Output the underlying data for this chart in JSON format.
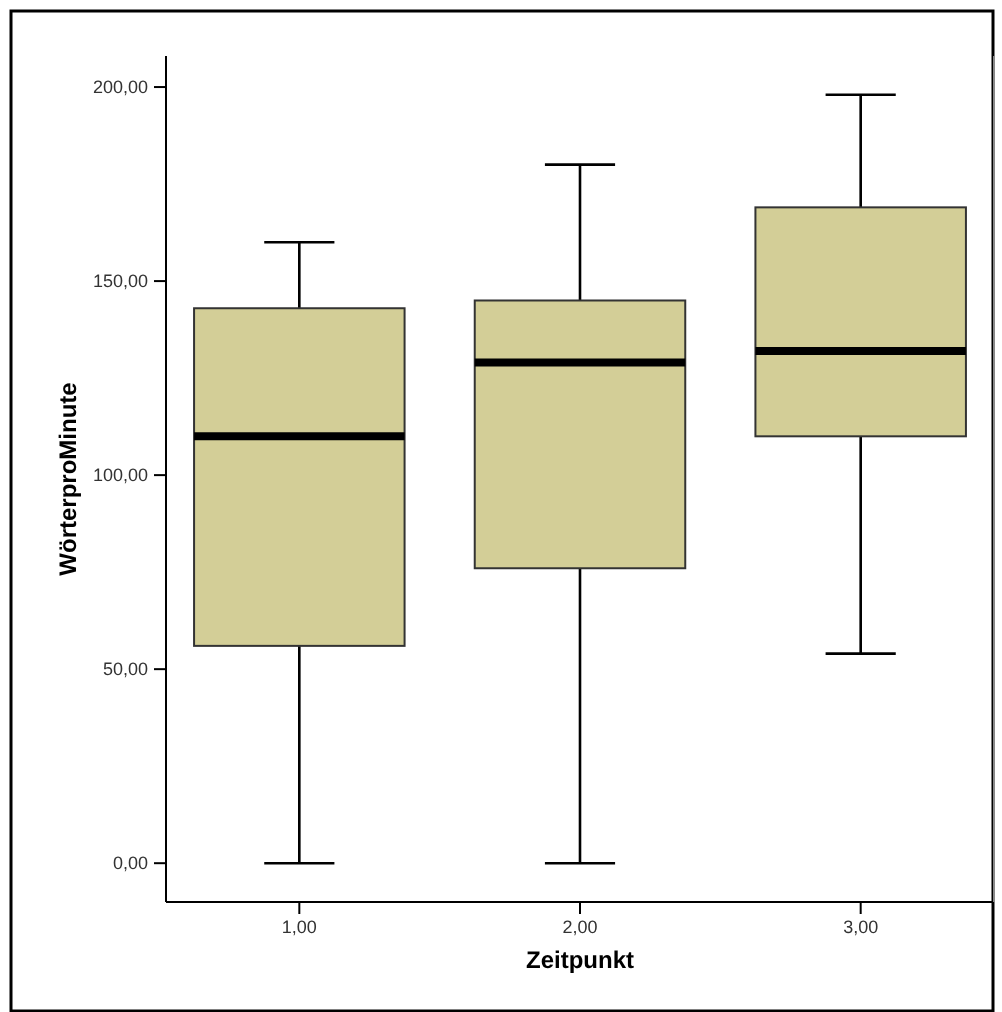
{
  "chart_data": {
    "type": "box",
    "xlabel": "Zeitpunkt",
    "ylabel": "WörterproMinute",
    "categories": [
      "1,00",
      "2,00",
      "3,00"
    ],
    "series": [
      {
        "color": "#d3ce97",
        "boxes": [
          {
            "low": 0,
            "q1": 56,
            "median": 110,
            "q3": 143,
            "high": 160
          },
          {
            "low": 0,
            "q1": 76,
            "median": 129,
            "q3": 145,
            "high": 180
          },
          {
            "low": 54,
            "q1": 110,
            "median": 132,
            "q3": 169,
            "high": 198
          }
        ]
      }
    ],
    "ylim": [
      -10,
      208
    ],
    "yticks": [
      {
        "value": 0,
        "label": "0,00"
      },
      {
        "value": 50,
        "label": "50,00"
      },
      {
        "value": 100,
        "label": "100,00"
      },
      {
        "value": 150,
        "label": "150,00"
      },
      {
        "value": 200,
        "label": "200,00"
      }
    ],
    "grid": false
  }
}
